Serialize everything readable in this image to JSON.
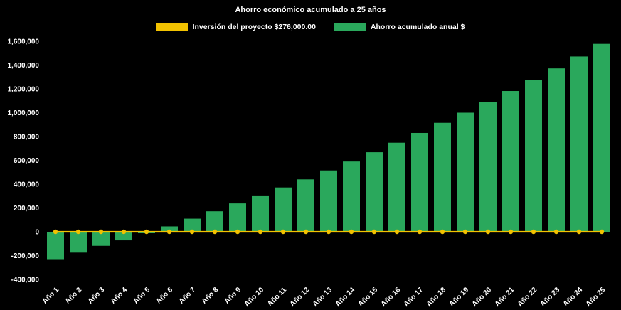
{
  "title": "Ahorro económico acumulado a 25 años",
  "colors": {
    "background": "#000000",
    "text": "#FFFFFF",
    "bar": "#2AA85C",
    "line": "#F2C200"
  },
  "legend": [
    {
      "label": "Inversión del proyecto $276,000.00",
      "color": "#F2C200",
      "swatch": "line-swatch"
    },
    {
      "label": "Ahorro acumulado anual $",
      "color": "#2AA85C",
      "swatch": "bar-swatch"
    }
  ],
  "chart_data": {
    "type": "bar",
    "title": "Ahorro económico acumulado a 25 años",
    "categories": [
      "Año 1",
      "Año 2",
      "Año 3",
      "Año 4",
      "Año 5",
      "Año 6",
      "Año 7",
      "Año 8",
      "Año 9",
      "Año 10",
      "Año 11",
      "Año 12",
      "Año 13",
      "Año 14",
      "Año 15",
      "Año 16",
      "Año 17",
      "Año 18",
      "Año 19",
      "Año 20",
      "Año 21",
      "Año 22",
      "Año 23",
      "Año 24",
      "Año 25"
    ],
    "series": [
      {
        "name": "Ahorro acumulado anual $",
        "type": "bar",
        "color": "#2AA85C",
        "values": [
          -230000,
          -175000,
          -118000,
          -72000,
          -12000,
          45000,
          110000,
          172000,
          238000,
          305000,
          372000,
          440000,
          515000,
          590000,
          668000,
          748000,
          830000,
          915000,
          1000000,
          1090000,
          1182000,
          1275000,
          1372000,
          1472000,
          1578000
        ]
      },
      {
        "name": "Inversión del proyecto $276,000.00",
        "type": "line",
        "color": "#F2C200",
        "values": [
          0,
          0,
          0,
          0,
          0,
          0,
          0,
          0,
          0,
          0,
          0,
          0,
          0,
          0,
          0,
          0,
          0,
          0,
          0,
          0,
          0,
          0,
          0,
          0,
          0
        ]
      }
    ],
    "xlabel": "",
    "ylabel": "",
    "ylim": [
      -400000,
      1600000
    ],
    "ytick_step": 200000,
    "grid": false,
    "legend_position": "top"
  }
}
